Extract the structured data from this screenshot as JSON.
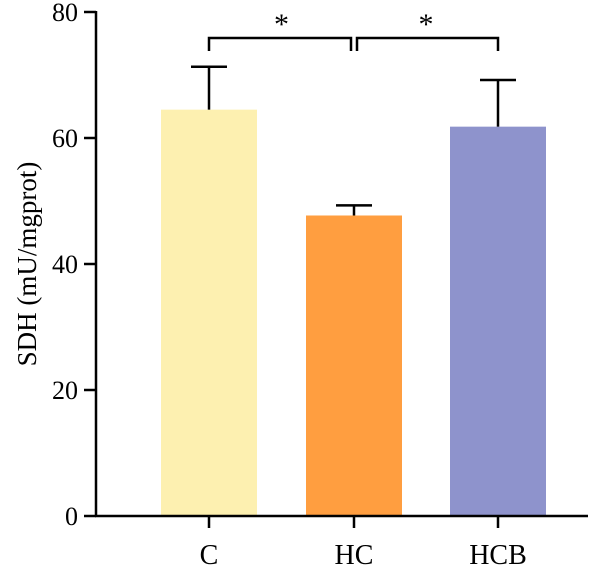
{
  "chart_data": {
    "type": "bar",
    "title": "",
    "xlabel": "",
    "ylabel": "SDH (mU/mgprot)",
    "ylim": [
      0,
      80
    ],
    "yticks": [
      0,
      20,
      40,
      60,
      80
    ],
    "grid": false,
    "categories": [
      "C",
      "HC",
      "HCB"
    ],
    "values": [
      64.5,
      47.7,
      61.8
    ],
    "errors": [
      6.8,
      1.6,
      7.4
    ],
    "colors": [
      "#fdf0b0",
      "#ff9e40",
      "#8e93cc"
    ],
    "significance": [
      {
        "from": "C",
        "to": "HC",
        "label": "*"
      },
      {
        "from": "HC",
        "to": "HCB",
        "label": "*"
      }
    ]
  }
}
